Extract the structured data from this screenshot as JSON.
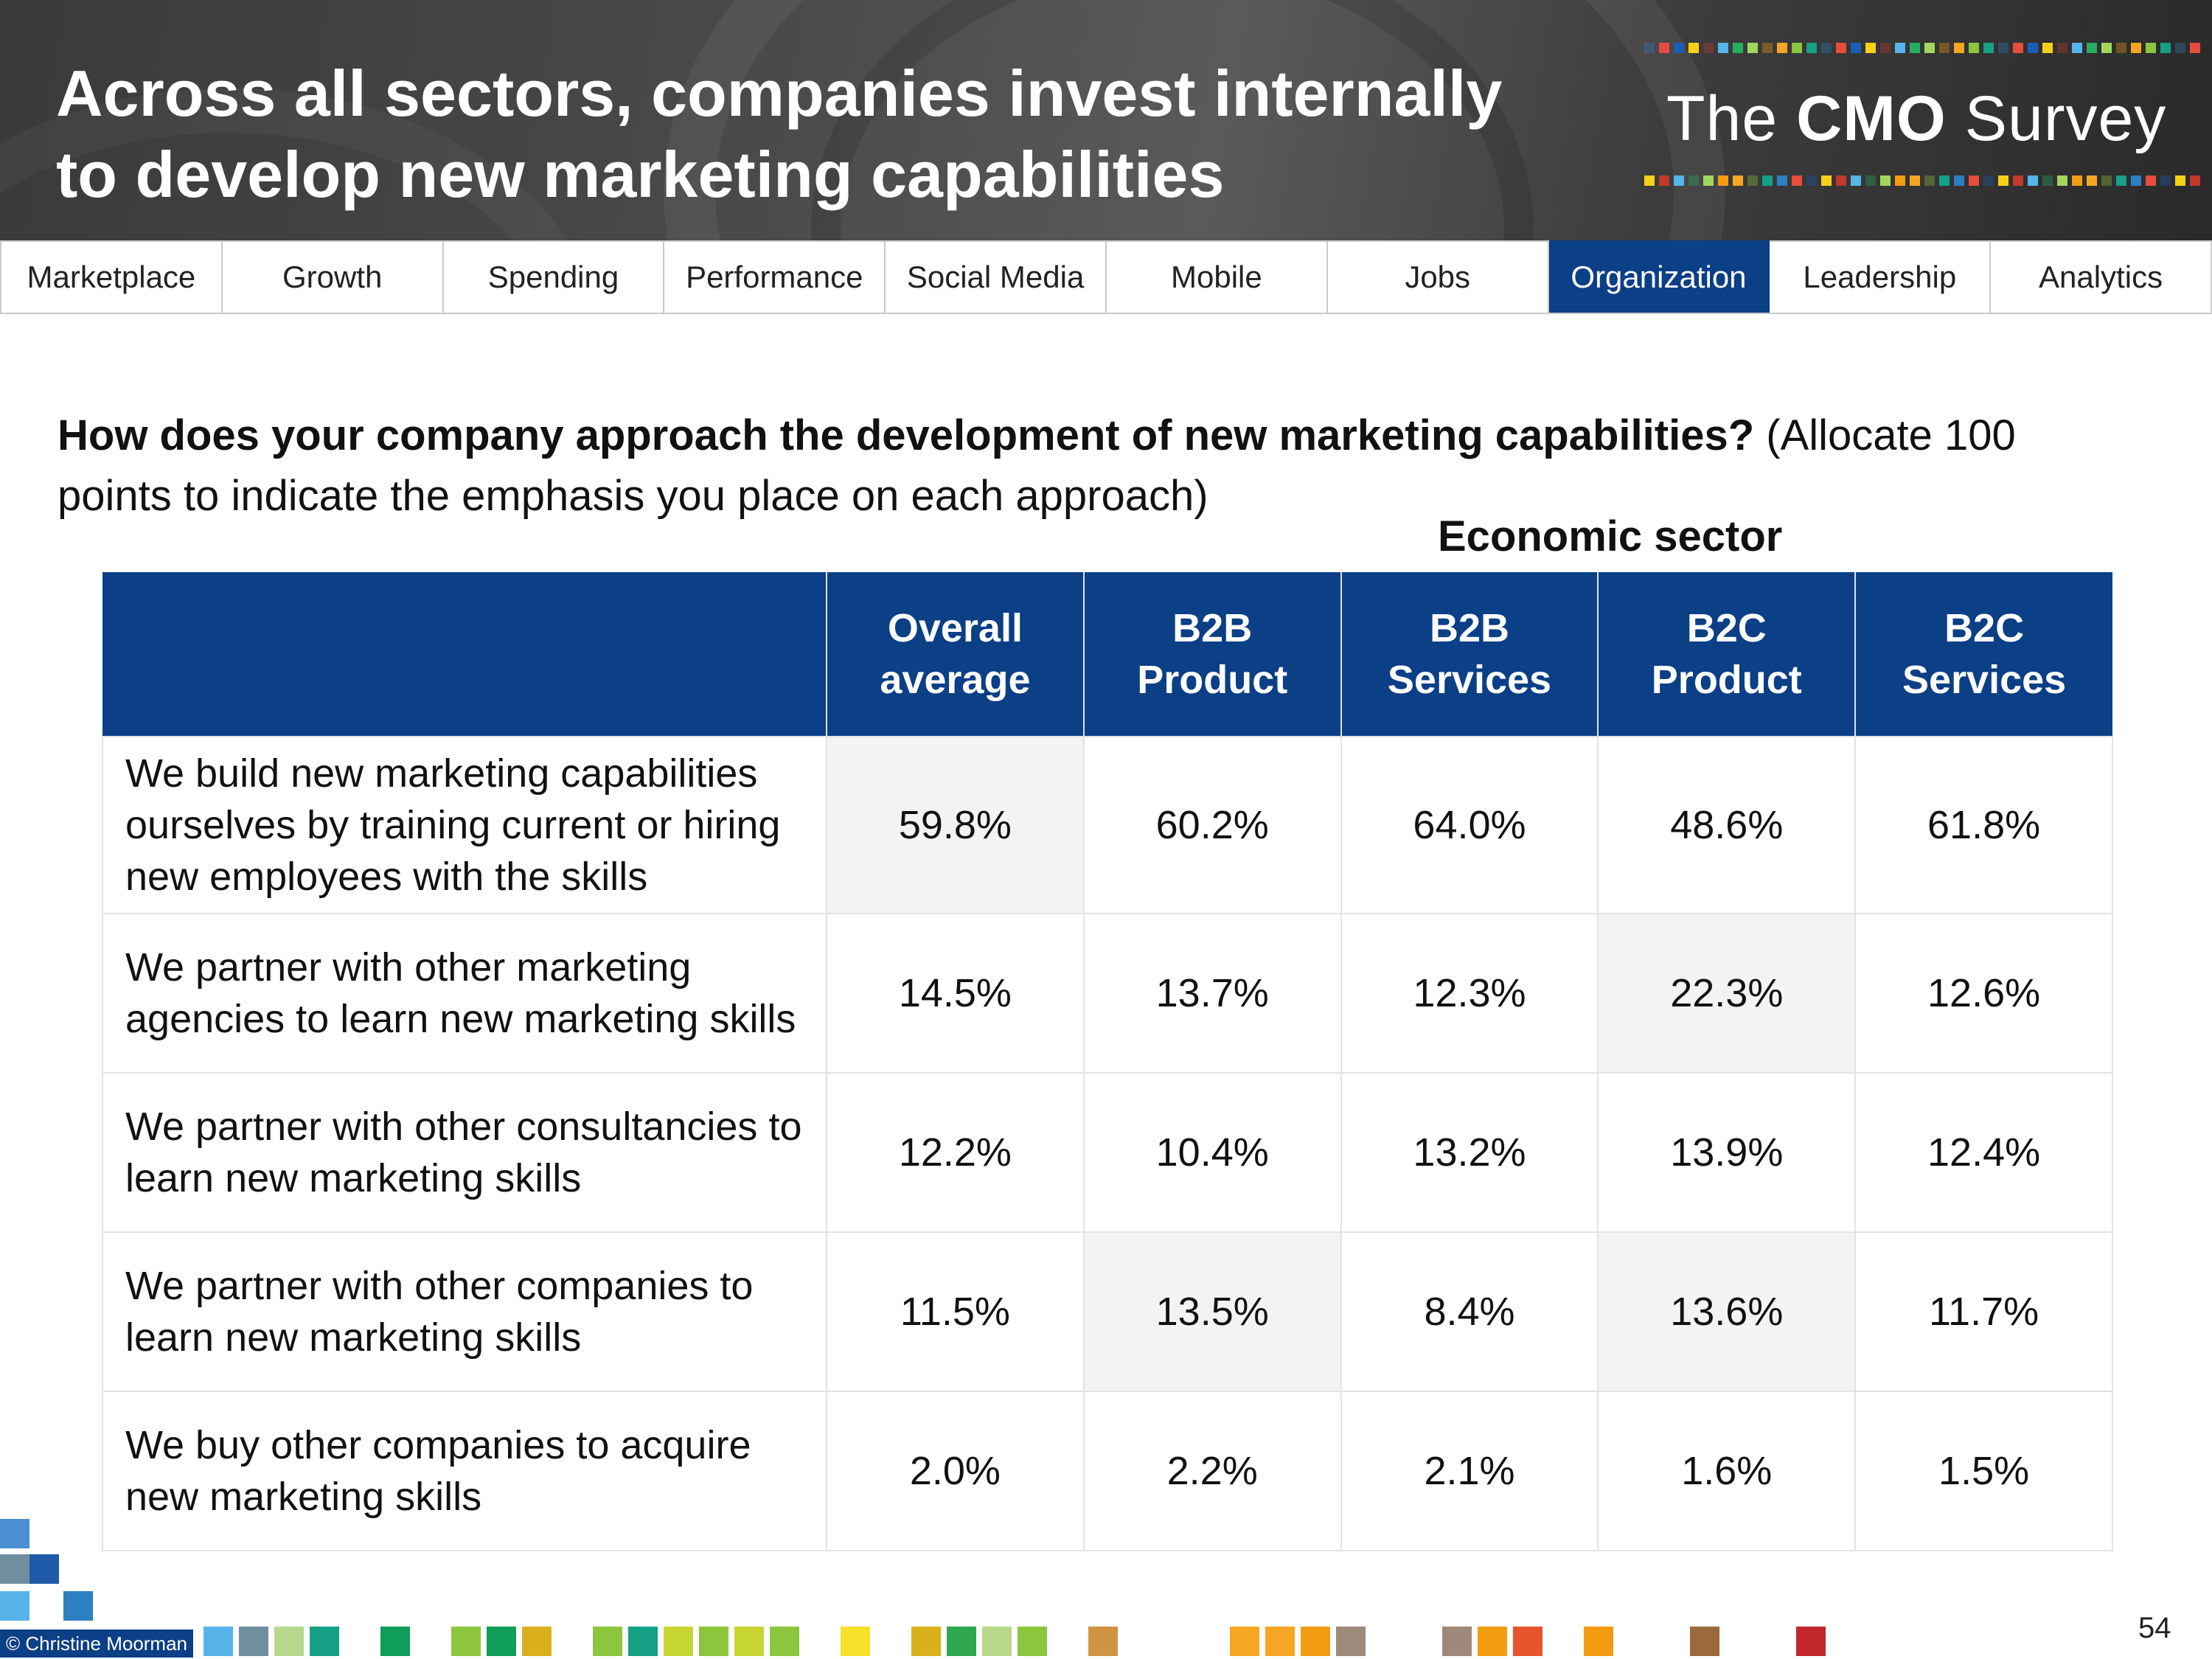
{
  "slide": {
    "title_line1": "Across all sectors, companies invest internally",
    "title_line2": "to develop new marketing capabilities",
    "brand_prefix": "The ",
    "brand_bold": "CMO",
    "brand_suffix": " Survey",
    "page_number": "54",
    "copyright": "© Christine Moorman"
  },
  "nav": {
    "tabs": [
      "Marketplace",
      "Growth",
      "Spending",
      "Performance",
      "Social Media",
      "Mobile",
      "Jobs",
      "Organization",
      "Leadership",
      "Analytics"
    ],
    "active": "Organization"
  },
  "question": {
    "bold": "How does your company approach the development of new marketing capabilities?",
    "rest": " (Allocate 100 points to indicate the emphasis you place on each approach)"
  },
  "table": {
    "group_label": "Economic sector",
    "columns": [
      {
        "line1": "Overall",
        "line2": "average"
      },
      {
        "line1": "B2B",
        "line2": "Product"
      },
      {
        "line1": "B2B",
        "line2": "Services"
      },
      {
        "line1": "B2C",
        "line2": "Product"
      },
      {
        "line1": "B2C",
        "line2": "Services"
      }
    ],
    "rows": [
      {
        "label": "We build new marketing capabilities ourselves by training current or hiring new employees with the skills",
        "values": [
          "59.8%",
          "60.2%",
          "64.0%",
          "48.6%",
          "61.8%"
        ]
      },
      {
        "label": "We partner with other marketing agencies to learn new marketing skills",
        "values": [
          "14.5%",
          "13.7%",
          "12.3%",
          "22.3%",
          "12.6%"
        ]
      },
      {
        "label": "We partner with other consultancies to learn new marketing skills",
        "values": [
          "12.2%",
          "10.4%",
          "13.2%",
          "13.9%",
          "12.4%"
        ]
      },
      {
        "label": "We partner with other companies to learn new marketing skills",
        "values": [
          "11.5%",
          "13.5%",
          "8.4%",
          "13.6%",
          "11.7%"
        ]
      },
      {
        "label": "We buy other companies to acquire new marketing skills",
        "values": [
          "2.0%",
          "2.2%",
          "2.1%",
          "1.6%",
          "1.5%"
        ]
      }
    ]
  },
  "colors": {
    "header_blue": "#0b3f86",
    "highlight_gray": "#f3f3f3"
  }
}
